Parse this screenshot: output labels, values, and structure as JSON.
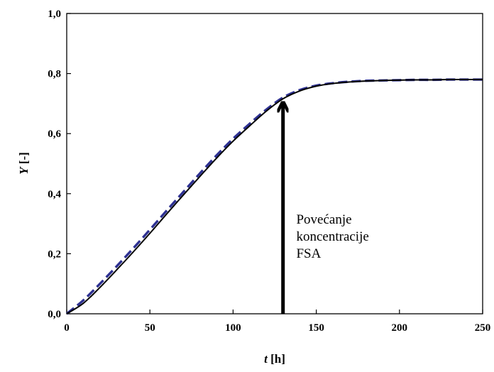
{
  "chart_data": {
    "type": "line",
    "title": "",
    "xlabel": {
      "var": "t",
      "unit": " [h]"
    },
    "ylabel": {
      "var": "Y",
      "unit": " [-]"
    },
    "xlim": [
      0,
      250
    ],
    "ylim": [
      0,
      1.0
    ],
    "xticks": [
      {
        "value": 0,
        "label": "0"
      },
      {
        "value": 50,
        "label": "50"
      },
      {
        "value": 100,
        "label": "100"
      },
      {
        "value": 150,
        "label": "150"
      },
      {
        "value": 200,
        "label": "200"
      },
      {
        "value": 250,
        "label": "250"
      }
    ],
    "yticks": [
      {
        "value": 0.0,
        "label": "0,0"
      },
      {
        "value": 0.2,
        "label": "0,2"
      },
      {
        "value": 0.4,
        "label": "0,4"
      },
      {
        "value": 0.6,
        "label": "0,6"
      },
      {
        "value": 0.8,
        "label": "0,8"
      },
      {
        "value": 1.0,
        "label": "1,0"
      }
    ],
    "grid": false,
    "legend": "none",
    "series": [
      {
        "style": "dashed",
        "color": "#2e3192",
        "x": [
          0,
          10,
          20,
          30,
          40,
          50,
          60,
          70,
          80,
          90,
          100,
          110,
          120,
          130,
          140,
          150,
          160,
          170,
          180,
          190,
          200,
          210,
          220,
          230,
          240,
          250
        ],
        "y": [
          0.0,
          0.045,
          0.1,
          0.158,
          0.218,
          0.28,
          0.343,
          0.405,
          0.467,
          0.527,
          0.583,
          0.633,
          0.68,
          0.72,
          0.745,
          0.76,
          0.768,
          0.773,
          0.776,
          0.777,
          0.778,
          0.779,
          0.779,
          0.78,
          0.78,
          0.78
        ]
      },
      {
        "style": "solid",
        "color": "#000000",
        "x": [
          0,
          10,
          20,
          30,
          40,
          50,
          60,
          70,
          80,
          90,
          100,
          110,
          120,
          130,
          140,
          150,
          160,
          170,
          180,
          190,
          200,
          210,
          220,
          230,
          240,
          250
        ],
        "y": [
          0.0,
          0.035,
          0.088,
          0.146,
          0.206,
          0.268,
          0.332,
          0.395,
          0.457,
          0.518,
          0.575,
          0.626,
          0.675,
          0.716,
          0.742,
          0.758,
          0.767,
          0.772,
          0.775,
          0.777,
          0.778,
          0.779,
          0.779,
          0.78,
          0.78,
          0.78
        ]
      }
    ],
    "annotation": {
      "lines": [
        "Povećanje",
        "koncentracije",
        "FSA"
      ],
      "arrow": {
        "x": 130,
        "y_from": 0.0,
        "y_to": 0.72
      },
      "text_at": {
        "x": 138,
        "y": 0.3
      }
    }
  }
}
